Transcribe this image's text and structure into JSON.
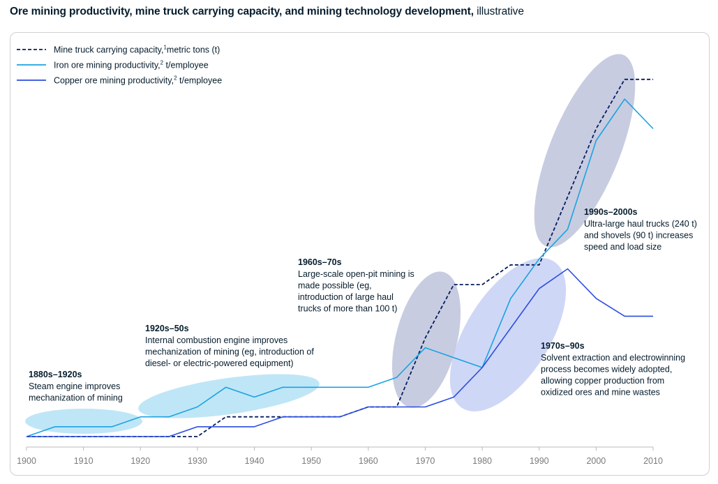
{
  "title": {
    "bold": "Ore mining productivity, mine truck carrying capacity, and mining technology development,",
    "light": "illustrative"
  },
  "chart_data": {
    "type": "line",
    "title": "Ore mining productivity, mine truck carrying capacity, and mining technology development, illustrative",
    "xlabel": "",
    "ylabel": "",
    "xlim": [
      1900,
      2010
    ],
    "ylim": [
      0,
      100
    ],
    "x_ticks": [
      1900,
      1910,
      1920,
      1930,
      1940,
      1950,
      1960,
      1970,
      1980,
      1990,
      2000,
      2010
    ],
    "legend": [
      {
        "key": "truck",
        "label": "Mine truck carrying capacity,",
        "sup": "1",
        "label_after": "metric tons (t)",
        "color": "#051c5c",
        "style": "dashed"
      },
      {
        "key": "iron",
        "label": "Iron ore mining productivity,",
        "sup": "2",
        "label_after": " t/employee",
        "color": "#1aa3e0",
        "style": "solid"
      },
      {
        "key": "copper",
        "label": "Copper ore mining productivity,",
        "sup": "2",
        "label_after": " t/employee",
        "color": "#2a4de0",
        "style": "solid"
      }
    ],
    "series": [
      {
        "key": "truck",
        "name": "Mine truck carrying capacity, metric tons (t)",
        "x": [
          1900,
          1930,
          1935,
          1955,
          1960,
          1965,
          1970,
          1975,
          1980,
          1985,
          1990,
          2000,
          2005,
          2010
        ],
        "y": [
          0,
          0,
          5,
          5,
          7.5,
          7.5,
          25,
          38.5,
          38.5,
          43.5,
          43.5,
          78,
          90.5,
          90.5
        ]
      },
      {
        "key": "iron",
        "name": "Iron ore mining productivity, t/employee",
        "x": [
          1900,
          1905,
          1915,
          1920,
          1925,
          1930,
          1935,
          1940,
          1945,
          1960,
          1965,
          1970,
          1980,
          1985,
          1990,
          1995,
          2000,
          2005,
          2010
        ],
        "y": [
          0,
          2.5,
          2.5,
          5,
          5,
          7.5,
          12.5,
          10,
          12.5,
          12.5,
          15,
          22.5,
          17.5,
          35,
          45,
          52.5,
          75,
          85.5,
          78
        ]
      },
      {
        "key": "copper",
        "name": "Copper ore mining productivity, t/employee",
        "x": [
          1900,
          1925,
          1930,
          1940,
          1945,
          1955,
          1960,
          1970,
          1975,
          1980,
          1990,
          1995,
          2000,
          2005,
          2010
        ],
        "y": [
          0,
          0,
          2.5,
          2.5,
          5,
          5,
          7.5,
          7.5,
          10,
          17.5,
          37.5,
          42.5,
          35,
          30.5,
          30.5
        ]
      }
    ],
    "eras": [
      {
        "key": "e1",
        "heading": "1880s–1920s",
        "lines": [
          "Steam engine improves",
          "mechanization of mining"
        ],
        "color": "#bfe6f7"
      },
      {
        "key": "e2",
        "heading": "1920s–50s",
        "lines": [
          "Internal combustion engine improves",
          "mechanization of mining (eg, introduction of",
          "diesel- or electric-powered equipment)"
        ],
        "color": "#bfe6f7"
      },
      {
        "key": "e3",
        "heading": "1960s–70s",
        "lines": [
          "Large-scale open-pit mining is",
          "made possible (eg,",
          "introduction of large haul",
          "trucks of more than 100 t)"
        ],
        "color": "#9aa3c9"
      },
      {
        "key": "e4",
        "heading": "1970s–90s",
        "lines": [
          "Solvent extraction and electrowinning",
          "process becomes widely adopted,",
          "allowing copper production from",
          "oxidized ores and mine wastes"
        ],
        "color": "#bcc8f4"
      },
      {
        "key": "e5",
        "heading": "1990s–2000s",
        "lines": [
          "Ultra-large haul trucks (240 t)",
          "and shovels (90 t) increases",
          "speed and load size"
        ],
        "color": "#9aa3c9"
      }
    ]
  }
}
